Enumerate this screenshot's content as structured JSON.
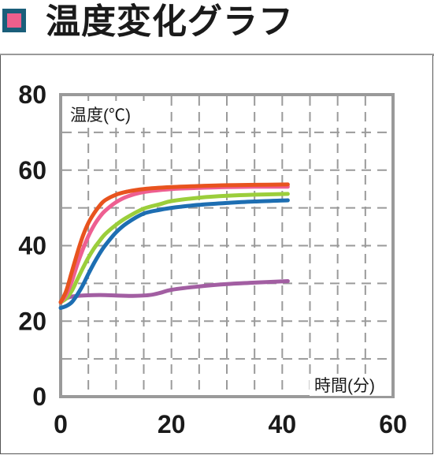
{
  "header": {
    "title": "温度変化グラフ",
    "marker_fill": "#ec5f8c",
    "marker_border": "#1a5e7a"
  },
  "chart_data": {
    "type": "line",
    "ylabel": "温度(℃)",
    "xlabel": "時間(分)",
    "xlim": [
      0,
      60
    ],
    "ylim": [
      0,
      80
    ],
    "xticks": [
      0,
      20,
      40,
      60
    ],
    "yticks": [
      0,
      20,
      40,
      60,
      80
    ],
    "grid": true,
    "grid_style": "dashed",
    "series": [
      {
        "color": "#e8531e",
        "x": [
          0,
          1,
          2,
          3,
          4,
          5,
          6,
          7,
          8,
          10,
          12,
          15,
          20,
          25,
          30,
          35,
          41
        ],
        "y": [
          25,
          28,
          33,
          38,
          42.5,
          46,
          48.5,
          50.5,
          52,
          53.5,
          54.3,
          55,
          55.5,
          55.8,
          56,
          56.1,
          56.2
        ]
      },
      {
        "color": "#ee5f91",
        "x": [
          0,
          1,
          2,
          3,
          4,
          5,
          6,
          7,
          8,
          10,
          12,
          15,
          20,
          25,
          30,
          35,
          41
        ],
        "y": [
          25,
          27,
          30.5,
          35,
          39,
          42.5,
          45.3,
          47.5,
          49.2,
          51.5,
          53,
          54.2,
          55,
          55.3,
          55.5,
          55.6,
          55.6
        ]
      },
      {
        "color": "#9bce3b",
        "x": [
          0,
          1,
          2,
          3,
          4,
          5,
          6,
          7,
          8,
          10,
          12,
          15,
          18,
          20,
          25,
          30,
          35,
          41
        ],
        "y": [
          25,
          26,
          28,
          31,
          34,
          36.8,
          39.2,
          41.2,
          43,
          45.5,
          47.5,
          49.8,
          51,
          51.8,
          52.7,
          53.2,
          53.5,
          53.7
        ]
      },
      {
        "color": "#1d6eb2",
        "x": [
          0,
          1,
          2,
          3,
          4,
          5,
          6,
          7,
          8,
          10,
          12,
          15,
          18,
          20,
          25,
          30,
          35,
          41
        ],
        "y": [
          23.5,
          24,
          25,
          27,
          29.5,
          32.5,
          35.3,
          37.8,
          40,
          43.5,
          46,
          48.5,
          49.5,
          50,
          50.8,
          51.3,
          51.7,
          52
        ]
      },
      {
        "color": "#a25ea2",
        "x": [
          0,
          1,
          2,
          4,
          6,
          8,
          10,
          13,
          16,
          18,
          20,
          25,
          30,
          35,
          41
        ],
        "y": [
          25,
          26,
          26.5,
          26.8,
          26.9,
          26.9,
          26.8,
          26.7,
          26.9,
          27.5,
          28.3,
          29.2,
          29.8,
          30.2,
          30.6
        ]
      }
    ]
  }
}
